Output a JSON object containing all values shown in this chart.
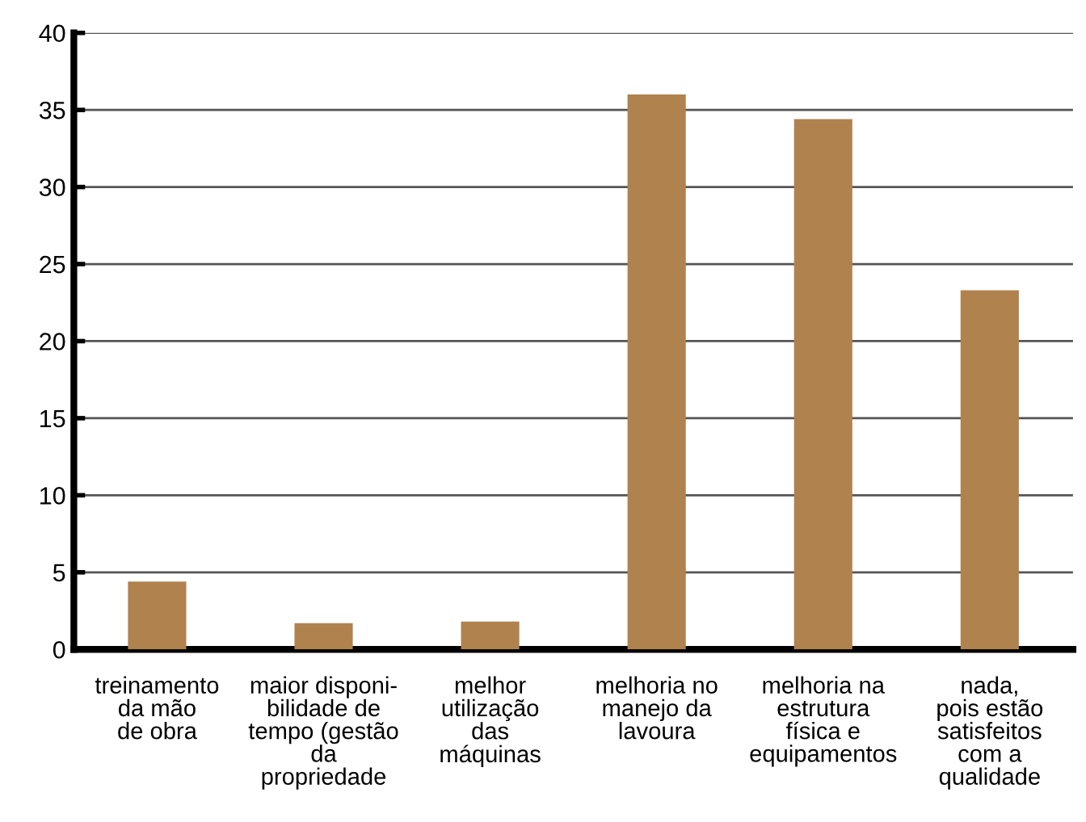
{
  "chart_data": {
    "type": "bar",
    "categories": [
      "treinamento\nda mão\nde obra",
      "maior disponi-\nbilidade de\ntempo (gestão\nda\npropriedade",
      "melhor\nutilização\ndas\nmáquinas",
      "melhoria no\nmanejo da\nlavoura",
      "melhoria na\nestrutura\nfísica e\nequipamentos",
      "nada,\npois estão\nsatisfeitos\ncom a\nqualidade"
    ],
    "values": [
      4.4,
      1.7,
      1.8,
      36.0,
      34.4,
      23.3
    ],
    "color": "#b0824e",
    "ylim": [
      0,
      40
    ],
    "yticks": [
      0,
      5,
      10,
      15,
      20,
      25,
      30,
      35,
      40
    ],
    "grid": "y"
  }
}
